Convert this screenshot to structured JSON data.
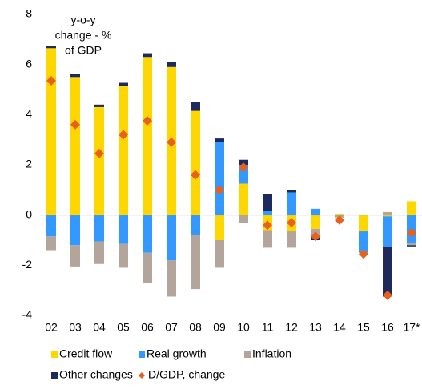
{
  "chart_data": {
    "type": "bar",
    "annotation": [
      "y-o-y",
      "change - %",
      "of GDP"
    ],
    "categories": [
      "02",
      "03",
      "04",
      "05",
      "06",
      "07",
      "08",
      "09",
      "10",
      "11",
      "12",
      "13",
      "14",
      "15",
      "16",
      "17*"
    ],
    "ylim": [
      -4,
      8
    ],
    "yticks": [
      -4,
      -2,
      0,
      2,
      4,
      6,
      8
    ],
    "grid": false,
    "series": [
      {
        "name": "Credit flow",
        "color": "#FFD700",
        "values": [
          6.65,
          5.5,
          4.3,
          5.15,
          6.3,
          5.9,
          4.15,
          -1.0,
          1.25,
          -0.6,
          -0.65,
          -0.55,
          0.05,
          -0.65,
          -0.05,
          0.55
        ]
      },
      {
        "name": "Real growth",
        "color": "#3399FF",
        "values": [
          -0.85,
          -1.2,
          -1.05,
          -1.15,
          -1.5,
          -1.8,
          -0.8,
          2.9,
          0.75,
          0.15,
          0.9,
          0.25,
          0,
          -0.85,
          -1.2,
          -1.1
        ]
      },
      {
        "name": "Inflation",
        "color": "#B3A49C",
        "values": [
          -0.55,
          -0.85,
          -0.9,
          -0.95,
          -1.2,
          -1.45,
          -2.15,
          -1.1,
          -0.3,
          -0.7,
          -0.65,
          -0.3,
          -0.1,
          0,
          0.12,
          -0.1
        ]
      },
      {
        "name": "Other changes",
        "color": "#1F2A5C",
        "values": [
          0.1,
          0.12,
          0.1,
          0.12,
          0.15,
          0.2,
          0.35,
          0.15,
          0.2,
          0.7,
          0.08,
          -0.15,
          0,
          0,
          -2.0,
          -0.05
        ]
      }
    ],
    "markers": {
      "name": "D/GDP, change",
      "color": "#E8601C",
      "values": [
        5.35,
        3.6,
        2.45,
        3.2,
        3.75,
        2.9,
        1.6,
        1.0,
        1.9,
        -0.4,
        -0.3,
        -0.85,
        -0.2,
        -1.55,
        -3.2,
        -0.7
      ]
    }
  }
}
